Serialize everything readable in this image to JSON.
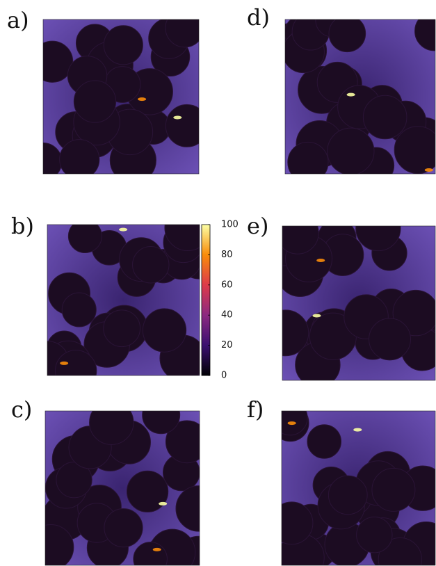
{
  "panels": [
    {
      "label": "a)"
    },
    {
      "label": "b)"
    },
    {
      "label": "c)"
    },
    {
      "label": "d)"
    },
    {
      "label": "e)"
    },
    {
      "label": "f)"
    }
  ],
  "colorbar": {
    "lim": [
      0,
      100
    ],
    "ticks": [
      0,
      20,
      40,
      60,
      80,
      100
    ]
  }
}
